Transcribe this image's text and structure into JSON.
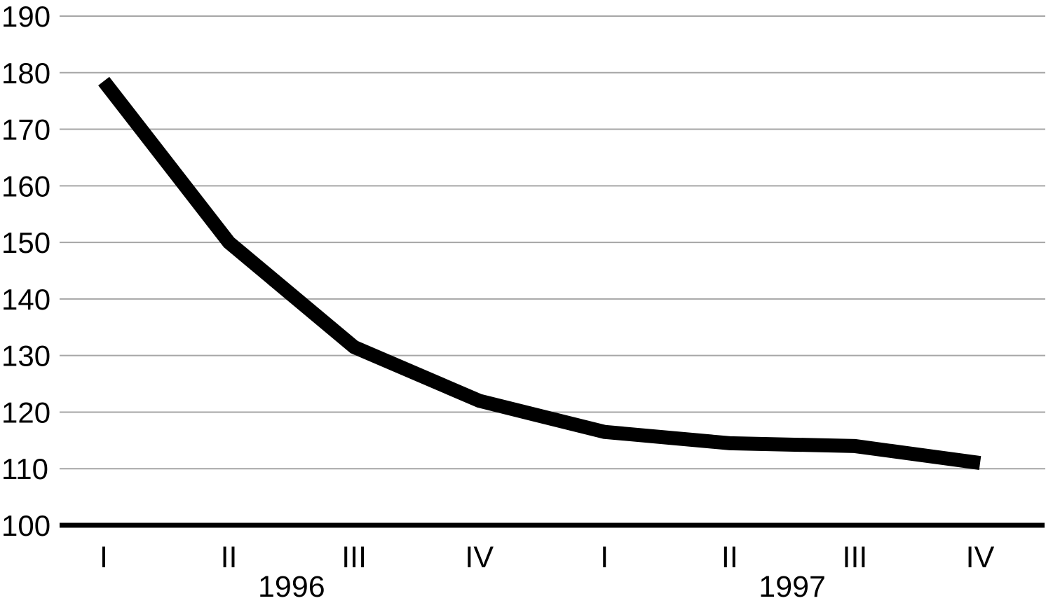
{
  "chart_data": {
    "type": "line",
    "title": "",
    "xlabel": "",
    "ylabel": "",
    "x_groups": [
      {
        "year": "1996",
        "quarters": [
          "I",
          "II",
          "III",
          "IV"
        ]
      },
      {
        "year": "1997",
        "quarters": [
          "I",
          "II",
          "III",
          "IV"
        ]
      }
    ],
    "categories": [
      "1996 I",
      "1996 II",
      "1996 III",
      "1996 IV",
      "1997 I",
      "1997 II",
      "1997 III",
      "1997 IV"
    ],
    "values": [
      178.5,
      150,
      131.5,
      122,
      116.5,
      114.5,
      114,
      111
    ],
    "ylim": [
      100,
      190
    ],
    "yticks": [
      100,
      110,
      120,
      130,
      140,
      150,
      160,
      170,
      180,
      190
    ],
    "grid": "horizontal",
    "legend": "none",
    "line_color": "#000000",
    "axis_color": "#000000",
    "gridline_color": "#a6a6a6",
    "background": "#ffffff"
  }
}
